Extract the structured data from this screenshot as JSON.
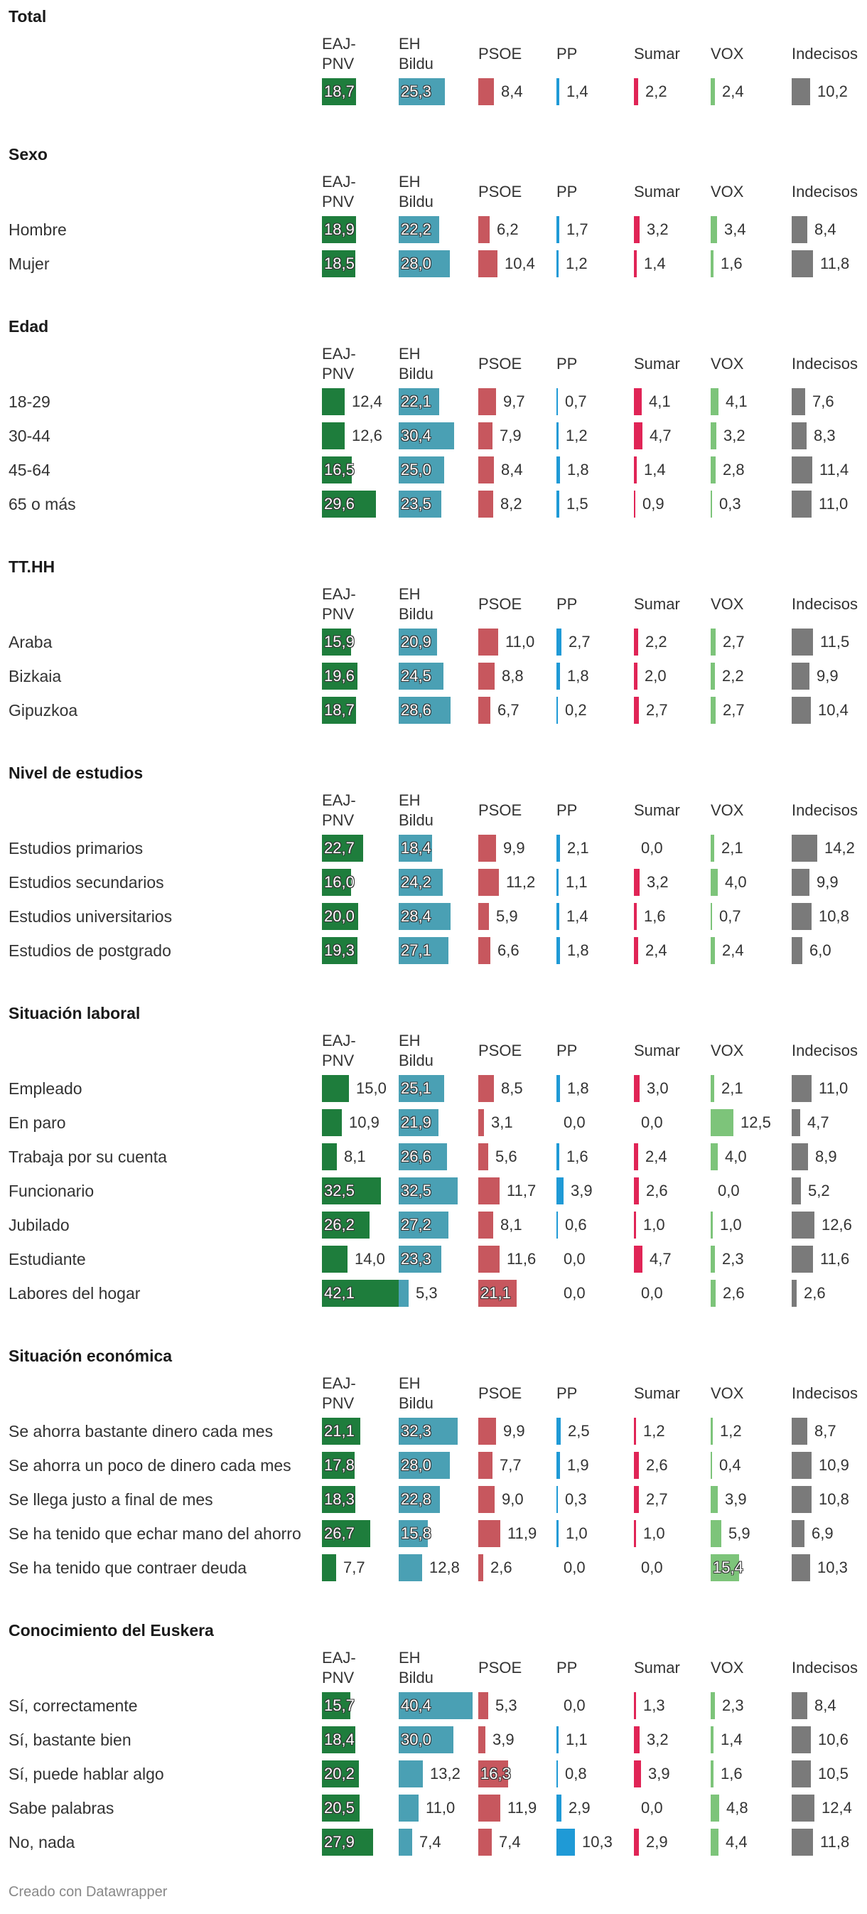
{
  "chart_data": {
    "type": "table",
    "columns": [
      "EAJ-PNV",
      "EH Bildu",
      "PSOE",
      "PP",
      "Sumar",
      "VOX",
      "Indecisos"
    ],
    "column_headers": [
      [
        "EAJ-",
        "PNV"
      ],
      [
        "EH",
        "Bildu"
      ],
      [
        "PSOE"
      ],
      [
        "PP"
      ],
      [
        "Sumar"
      ],
      [
        "VOX"
      ],
      [
        "Indecisos"
      ]
    ],
    "colors": [
      "#1e7d3c",
      "#4aa0b4",
      "#c7575e",
      "#1f9ad6",
      "#e02456",
      "#7dc47a",
      "#7a7a7a"
    ],
    "sections": [
      {
        "title": "Total",
        "rows": [
          {
            "label": "",
            "values": [
              18.7,
              25.3,
              8.4,
              1.4,
              2.2,
              2.4,
              10.2
            ]
          }
        ]
      },
      {
        "title": "Sexo",
        "rows": [
          {
            "label": "Hombre",
            "values": [
              18.9,
              22.2,
              6.2,
              1.7,
              3.2,
              3.4,
              8.4
            ]
          },
          {
            "label": "Mujer",
            "values": [
              18.5,
              28.0,
              10.4,
              1.2,
              1.4,
              1.6,
              11.8
            ]
          }
        ]
      },
      {
        "title": "Edad",
        "rows": [
          {
            "label": "18-29",
            "values": [
              12.4,
              22.1,
              9.7,
              0.7,
              4.1,
              4.1,
              7.6
            ]
          },
          {
            "label": "30-44",
            "values": [
              12.6,
              30.4,
              7.9,
              1.2,
              4.7,
              3.2,
              8.3
            ]
          },
          {
            "label": "45-64",
            "values": [
              16.5,
              25.0,
              8.4,
              1.8,
              1.4,
              2.8,
              11.4
            ]
          },
          {
            "label": "65 o más",
            "values": [
              29.6,
              23.5,
              8.2,
              1.5,
              0.9,
              0.3,
              11.0
            ]
          }
        ]
      },
      {
        "title": "TT.HH",
        "rows": [
          {
            "label": "Araba",
            "values": [
              15.9,
              20.9,
              11.0,
              2.7,
              2.2,
              2.7,
              11.5
            ]
          },
          {
            "label": "Bizkaia",
            "values": [
              19.6,
              24.5,
              8.8,
              1.8,
              2.0,
              2.2,
              9.9
            ]
          },
          {
            "label": "Gipuzkoa",
            "values": [
              18.7,
              28.6,
              6.7,
              0.2,
              2.7,
              2.7,
              10.4
            ]
          }
        ]
      },
      {
        "title": "Nivel de estudios",
        "rows": [
          {
            "label": "Estudios primarios",
            "values": [
              22.7,
              18.4,
              9.9,
              2.1,
              0.0,
              2.1,
              14.2
            ]
          },
          {
            "label": "Estudios secundarios",
            "values": [
              16.0,
              24.2,
              11.2,
              1.1,
              3.2,
              4.0,
              9.9
            ]
          },
          {
            "label": "Estudios universitarios",
            "values": [
              20.0,
              28.4,
              5.9,
              1.4,
              1.6,
              0.7,
              10.8
            ]
          },
          {
            "label": "Estudios de postgrado",
            "values": [
              19.3,
              27.1,
              6.6,
              1.8,
              2.4,
              2.4,
              6.0
            ]
          }
        ]
      },
      {
        "title": "Situación laboral",
        "rows": [
          {
            "label": "Empleado",
            "values": [
              15.0,
              25.1,
              8.5,
              1.8,
              3.0,
              2.1,
              11.0
            ]
          },
          {
            "label": "En paro",
            "values": [
              10.9,
              21.9,
              3.1,
              0.0,
              0.0,
              12.5,
              4.7
            ]
          },
          {
            "label": "Trabaja por su cuenta",
            "values": [
              8.1,
              26.6,
              5.6,
              1.6,
              2.4,
              4.0,
              8.9
            ]
          },
          {
            "label": "Funcionario",
            "values": [
              32.5,
              32.5,
              11.7,
              3.9,
              2.6,
              0.0,
              5.2
            ]
          },
          {
            "label": "Jubilado",
            "values": [
              26.2,
              27.2,
              8.1,
              0.6,
              1.0,
              1.0,
              12.6
            ]
          },
          {
            "label": "Estudiante",
            "values": [
              14.0,
              23.3,
              11.6,
              0.0,
              4.7,
              2.3,
              11.6
            ]
          },
          {
            "label": "Labores del hogar",
            "values": [
              42.1,
              5.3,
              21.1,
              0.0,
              0.0,
              2.6,
              2.6
            ]
          }
        ]
      },
      {
        "title": "Situación económica",
        "rows": [
          {
            "label": "Se ahorra bastante dinero cada mes",
            "values": [
              21.1,
              32.3,
              9.9,
              2.5,
              1.2,
              1.2,
              8.7
            ]
          },
          {
            "label": "Se ahorra un poco de dinero cada mes",
            "values": [
              17.8,
              28.0,
              7.7,
              1.9,
              2.6,
              0.4,
              10.9
            ]
          },
          {
            "label": "Se llega justo a final de mes",
            "values": [
              18.3,
              22.8,
              9.0,
              0.3,
              2.7,
              3.9,
              10.8
            ]
          },
          {
            "label": "Se ha tenido que echar mano del ahorro",
            "values": [
              26.7,
              15.8,
              11.9,
              1.0,
              1.0,
              5.9,
              6.9
            ]
          },
          {
            "label": "Se ha tenido que contraer deuda",
            "values": [
              7.7,
              12.8,
              2.6,
              0.0,
              0.0,
              15.4,
              10.3
            ]
          }
        ]
      },
      {
        "title": "Conocimiento del Euskera",
        "rows": [
          {
            "label": "Sí, correctamente",
            "values": [
              15.7,
              40.4,
              5.3,
              0.0,
              1.3,
              2.3,
              8.4
            ]
          },
          {
            "label": "Sí, bastante bien",
            "values": [
              18.4,
              30.0,
              3.9,
              1.1,
              3.2,
              1.4,
              10.6
            ]
          },
          {
            "label": "Sí, puede hablar algo",
            "values": [
              20.2,
              13.2,
              16.3,
              0.8,
              3.9,
              1.6,
              10.5
            ]
          },
          {
            "label": "Sabe palabras",
            "values": [
              20.5,
              11.0,
              11.9,
              2.9,
              0.0,
              4.8,
              12.4
            ]
          },
          {
            "label": "No, nada",
            "values": [
              27.9,
              7.4,
              7.4,
              10.3,
              2.9,
              4.4,
              11.8
            ]
          }
        ]
      }
    ]
  },
  "footer": {
    "credit": "Creado con Datawrapper"
  }
}
